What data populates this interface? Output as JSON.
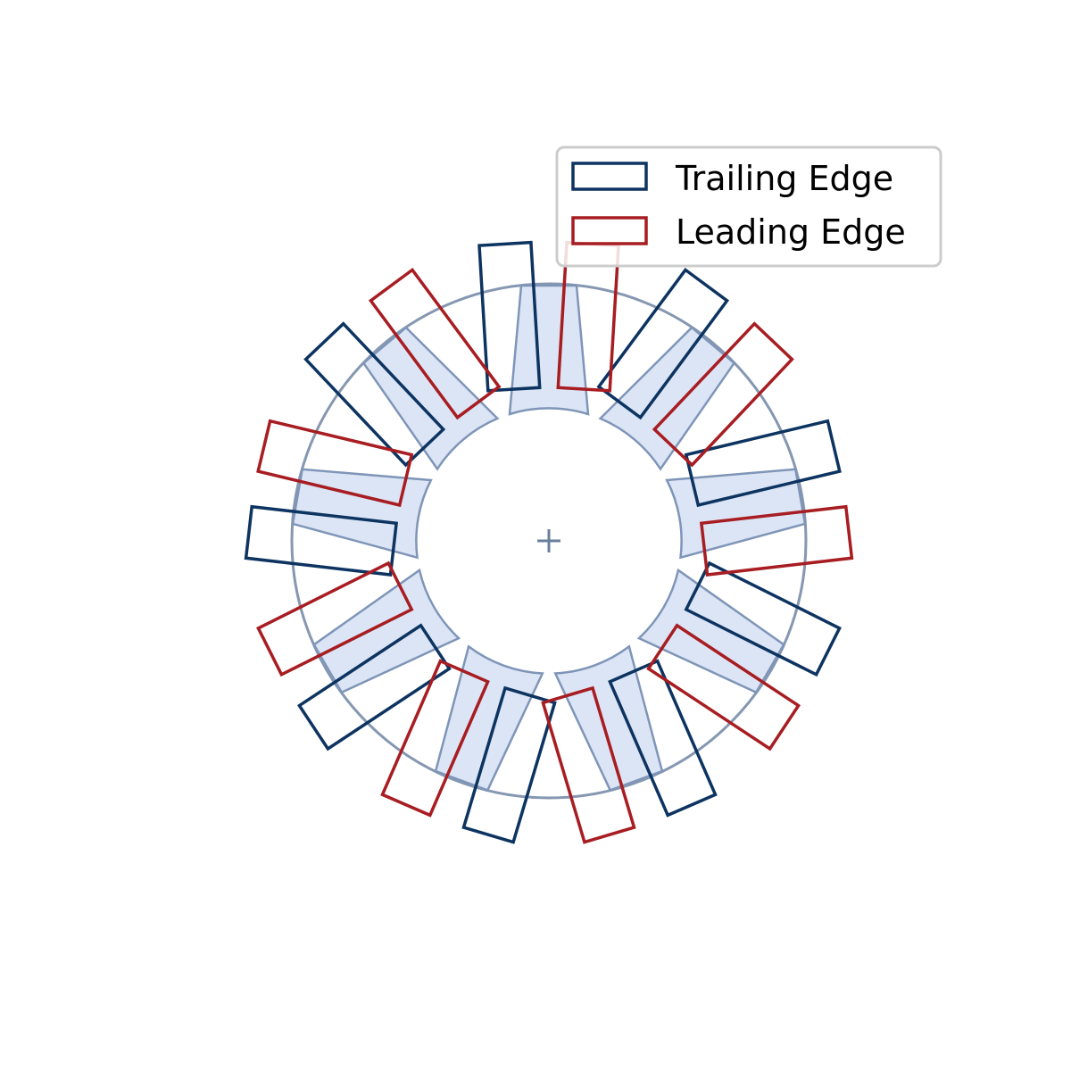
{
  "diagram": {
    "pole_count": 9,
    "colors": {
      "trailing_edge": "#0d3461",
      "leading_edge": "#a71d22",
      "pole_fill": "#dce5f5",
      "pole_stroke": "#7f95b8",
      "outer_circle": "#8597b1",
      "center_marker": "#6a7f9c"
    }
  },
  "legend": {
    "items": [
      {
        "label": "Trailing Edge",
        "color": "#0d3461"
      },
      {
        "label": "Leading Edge",
        "color": "#a71d22"
      }
    ]
  }
}
